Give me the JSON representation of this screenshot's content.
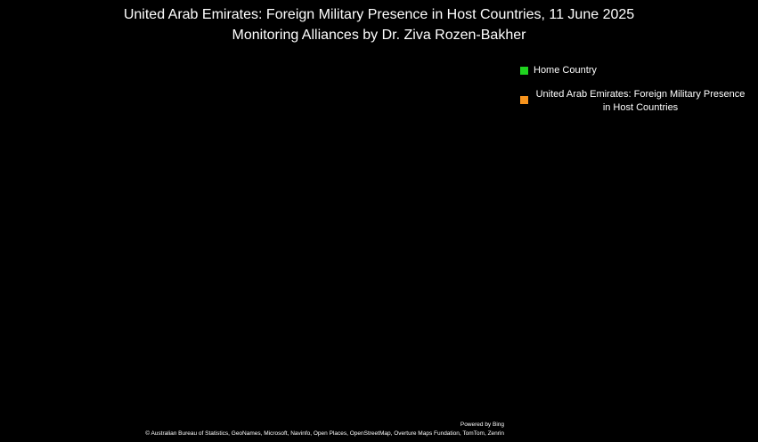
{
  "title": [
    "United Arab Emirates: Foreign Military Presence in Host Countries, 11 June 2025",
    "Monitoring Alliances by Dr. Ziva Rozen-Bakher"
  ],
  "legend": [
    {
      "label": "Home Country",
      "color": "#1fd31f"
    },
    {
      "label": "United Arab Emirates: Foreign Military Presence in Host Countries",
      "color": "#f7941d"
    }
  ],
  "footer": {
    "powered": "Powered by Bing",
    "credits": "© Australian Bureau of Statistics, GeoNames, Microsoft, Navinfo, Open Places, OpenStreetMap, Overture Maps Fundation, TomTom, Zenrin"
  }
}
